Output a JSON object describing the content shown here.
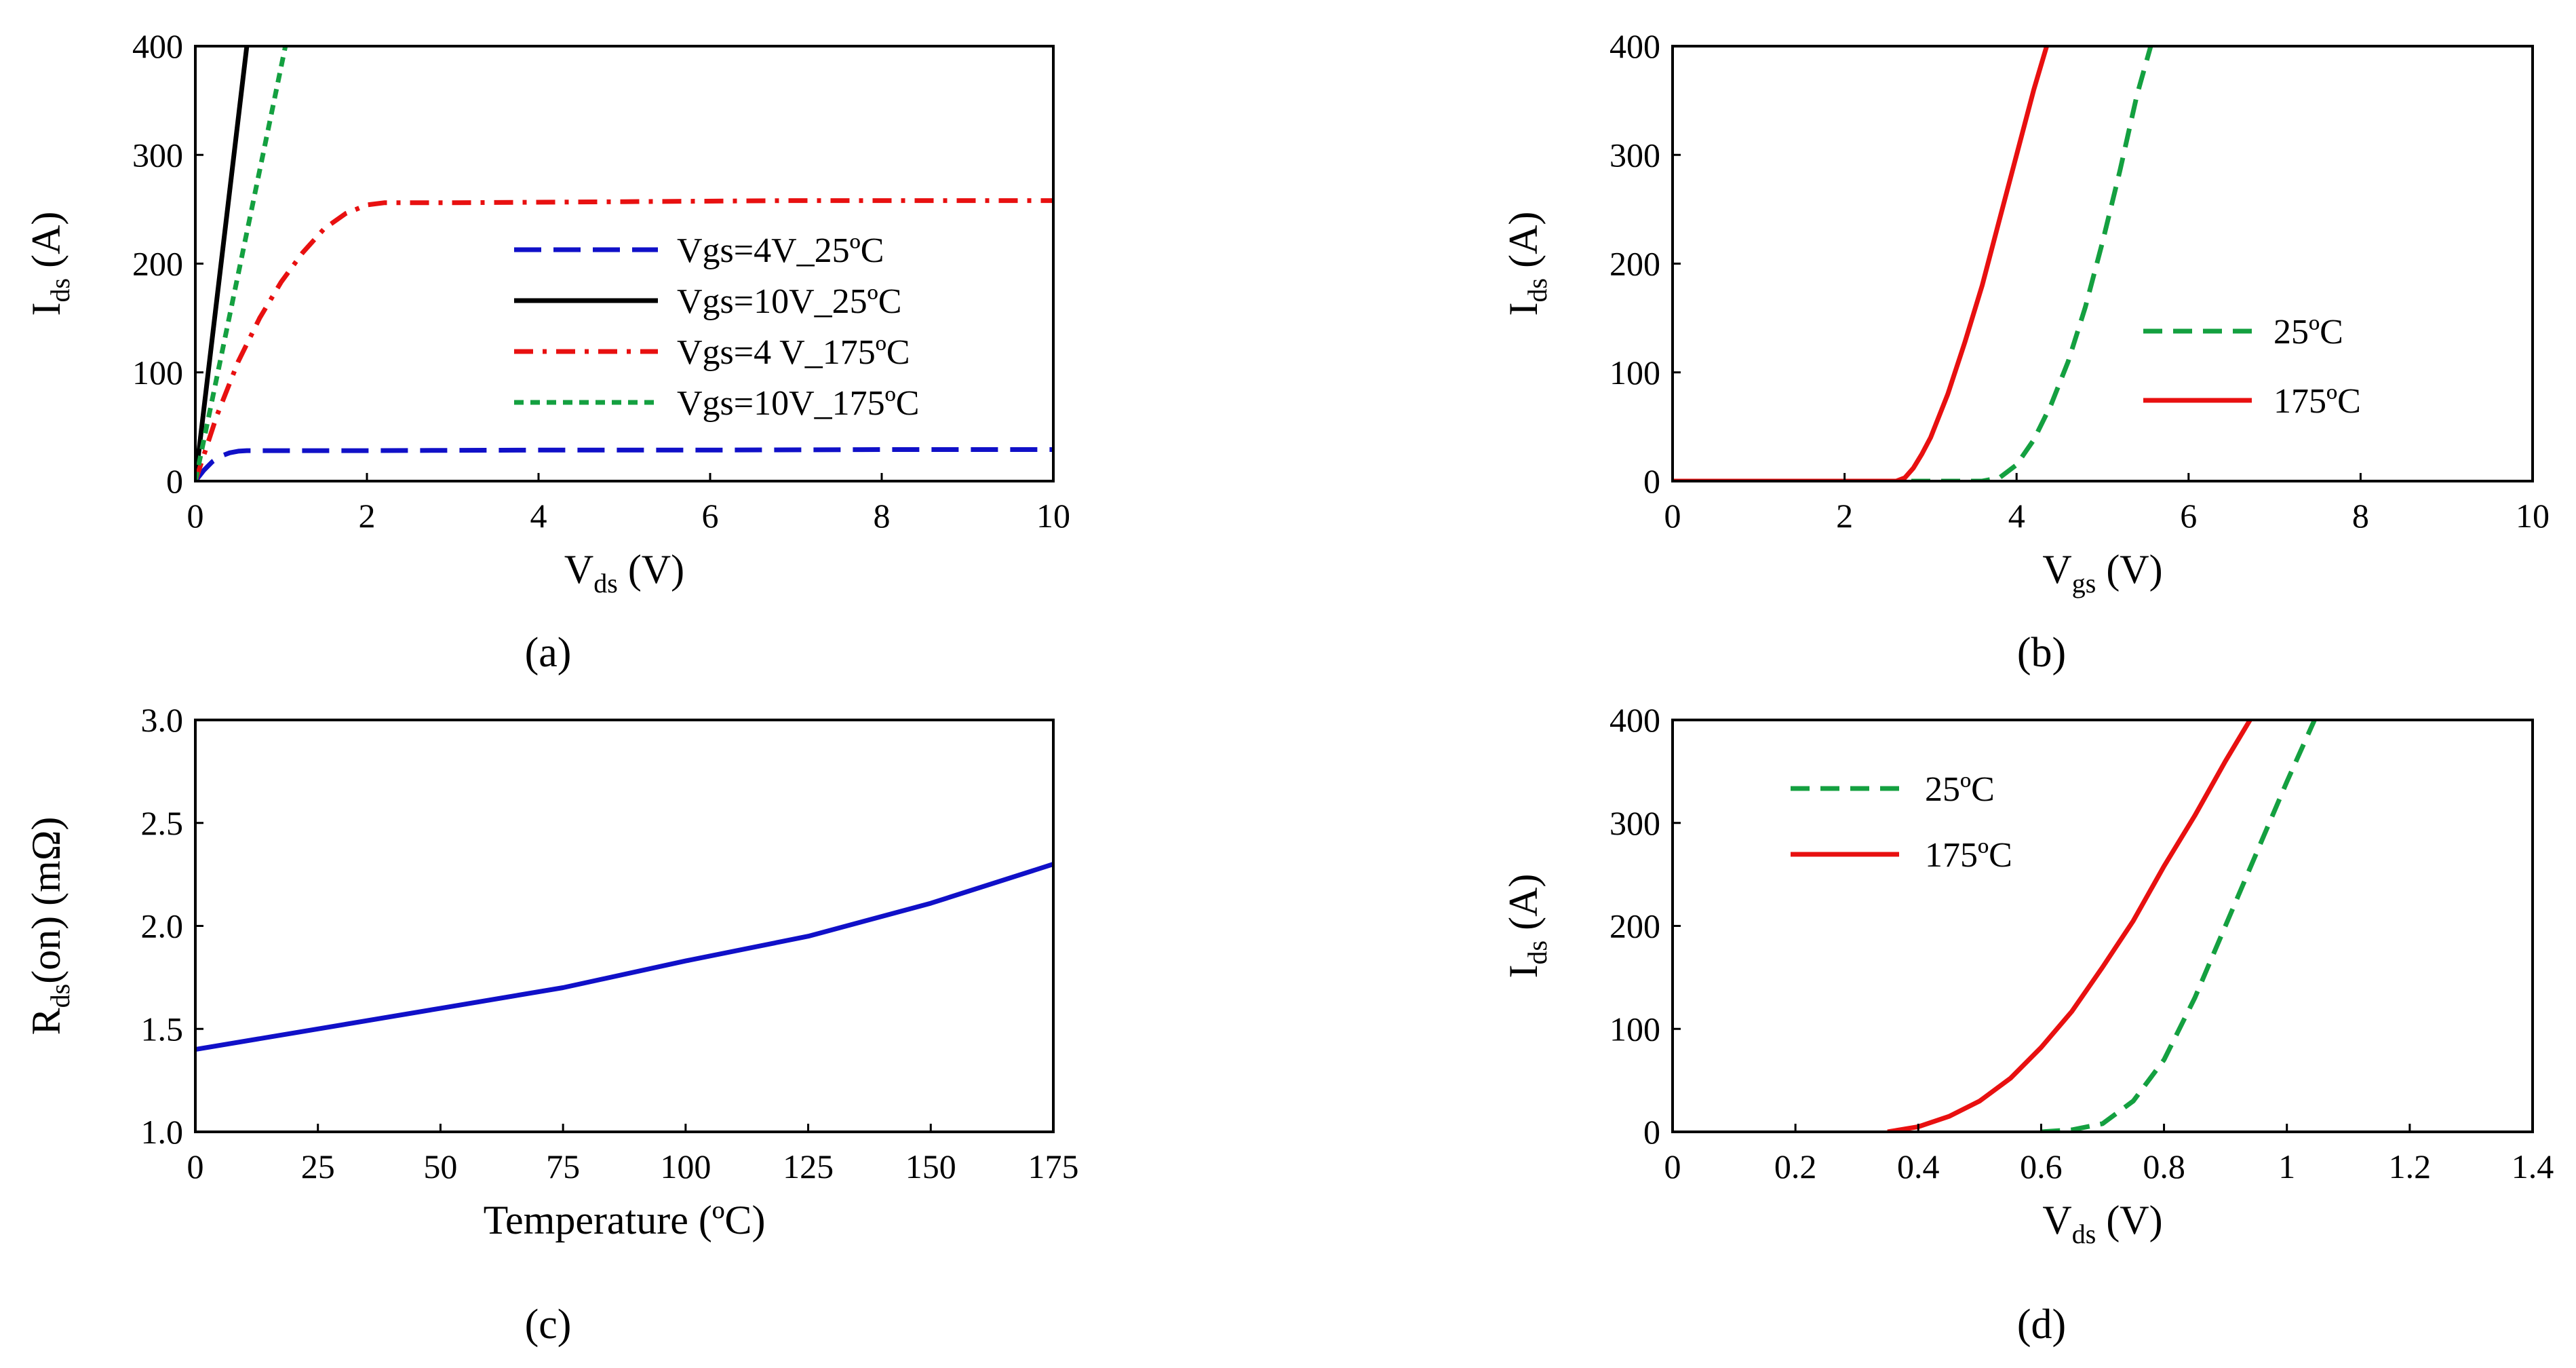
{
  "figure": {
    "captions": [
      "(a)",
      "(b)",
      "(c)",
      "(d)"
    ]
  },
  "chart_data": [
    {
      "id": "a",
      "type": "line",
      "caption": "(a)",
      "xlabel": {
        "main": "V",
        "sub": "ds",
        "unit": " (V)"
      },
      "ylabel": {
        "main": "I",
        "sub": "ds",
        "unit": " (A)"
      },
      "xlim": [
        0,
        10
      ],
      "ylim": [
        0,
        400
      ],
      "xticks": [
        0,
        2,
        4,
        6,
        8,
        10
      ],
      "yticks": [
        0,
        100,
        200,
        300,
        400
      ],
      "xtick_labels": [
        "0",
        "2",
        "4",
        "6",
        "8",
        "10"
      ],
      "ytick_labels": [
        "0",
        "100",
        "200",
        "300",
        "400"
      ],
      "legend_position": "center-right",
      "series": [
        {
          "name": "Vgs=4V_25ºC",
          "color": "#1010c8",
          "dash": "long-dash",
          "x": [
            0,
            0.1,
            0.2,
            0.3,
            0.4,
            0.5,
            0.6,
            1,
            2,
            4,
            6,
            8,
            10
          ],
          "y": [
            0,
            10,
            18,
            23,
            26,
            27.5,
            28,
            28,
            28,
            28.5,
            28.5,
            29,
            29
          ]
        },
        {
          "name": "Vgs=10V_25ºC",
          "color": "#000000",
          "dash": "solid",
          "x": [
            0,
            0.6
          ],
          "y": [
            0,
            400
          ]
        },
        {
          "name": "Vgs=4 V_175ºC",
          "color": "#e81010",
          "dash": "dash-dot",
          "x": [
            0,
            0.25,
            0.5,
            0.75,
            1,
            1.25,
            1.5,
            1.75,
            2,
            2.2,
            3,
            5,
            7,
            10
          ],
          "y": [
            0,
            60,
            110,
            150,
            183,
            210,
            232,
            246,
            254,
            256,
            256,
            257,
            258,
            258
          ]
        },
        {
          "name": "Vgs=10V_175ºC",
          "color": "#14a040",
          "dash": "short-dash",
          "x": [
            0,
            1.05
          ],
          "y": [
            0,
            400
          ]
        }
      ]
    },
    {
      "id": "b",
      "type": "line",
      "caption": "(b)",
      "xlabel": {
        "main": "V",
        "sub": "gs",
        "unit": " (V)"
      },
      "ylabel": {
        "main": "I",
        "sub": "ds",
        "unit": " (A)"
      },
      "xlim": [
        0,
        10
      ],
      "ylim": [
        0,
        400
      ],
      "xticks": [
        0,
        2,
        4,
        6,
        8,
        10
      ],
      "yticks": [
        0,
        100,
        200,
        300,
        400
      ],
      "xtick_labels": [
        "0",
        "2",
        "4",
        "6",
        "8",
        "10"
      ],
      "ytick_labels": [
        "0",
        "100",
        "200",
        "300",
        "400"
      ],
      "legend_position": "center-right",
      "series": [
        {
          "name": "25ºC",
          "color": "#14a040",
          "dash": "dash",
          "x": [
            0,
            3.2,
            3.6,
            3.8,
            4.0,
            4.2,
            4.4,
            4.6,
            4.8,
            5.0,
            5.2,
            5.4,
            5.56
          ],
          "y": [
            0,
            0,
            0,
            3,
            15,
            38,
            70,
            110,
            160,
            220,
            285,
            355,
            400
          ]
        },
        {
          "name": "175ºC",
          "color": "#e81010",
          "dash": "solid",
          "x": [
            0,
            2.6,
            2.7,
            2.8,
            2.9,
            3.0,
            3.2,
            3.4,
            3.6,
            3.8,
            4.0,
            4.2,
            4.35
          ],
          "y": [
            0,
            0,
            3,
            12,
            25,
            40,
            80,
            128,
            180,
            240,
            300,
            360,
            400
          ]
        }
      ]
    },
    {
      "id": "c",
      "type": "line",
      "caption": "(c)",
      "xlabel": {
        "main": "Temperature (ºC)"
      },
      "ylabel": {
        "main": "R",
        "sub": "ds",
        "unit": "(on) (mΩ)"
      },
      "xlim": [
        0,
        175
      ],
      "ylim": [
        1.0,
        3.0
      ],
      "xticks": [
        0,
        25,
        50,
        75,
        100,
        125,
        150,
        175
      ],
      "yticks": [
        1.0,
        1.5,
        2.0,
        2.5,
        3.0
      ],
      "xtick_labels": [
        "0",
        "25",
        "50",
        "75",
        "100",
        "125",
        "150",
        "175"
      ],
      "ytick_labels": [
        "1.0",
        "1.5",
        "2.0",
        "2.5",
        "3.0"
      ],
      "series": [
        {
          "name": "Rds(on)",
          "color": "#1010c8",
          "dash": "solid",
          "x": [
            0,
            25,
            50,
            75,
            100,
            125,
            150,
            175
          ],
          "y": [
            1.4,
            1.5,
            1.6,
            1.7,
            1.83,
            1.95,
            2.11,
            2.3
          ]
        }
      ]
    },
    {
      "id": "d",
      "type": "line",
      "caption": "(d)",
      "xlabel": {
        "main": "V",
        "sub": "ds",
        "unit": " (V)"
      },
      "ylabel": {
        "main": "I",
        "sub": "ds",
        "unit": " (A)"
      },
      "xlim": [
        0,
        1.4
      ],
      "ylim": [
        0,
        400
      ],
      "xticks": [
        0,
        0.2,
        0.4,
        0.6,
        0.8,
        1.0,
        1.2,
        1.4
      ],
      "yticks": [
        0,
        100,
        200,
        300,
        400
      ],
      "xtick_labels": [
        "0",
        "0.2",
        "0.4",
        "0.6",
        "0.8",
        "1",
        "1.2",
        "1.4"
      ],
      "ytick_labels": [
        "0",
        "100",
        "200",
        "300",
        "400"
      ],
      "legend_position": "top-left",
      "series": [
        {
          "name": "25ºC",
          "color": "#14a040",
          "dash": "dash",
          "x": [
            0.6,
            0.65,
            0.7,
            0.75,
            0.8,
            0.85,
            0.9,
            0.95,
            1.0,
            1.045
          ],
          "y": [
            0,
            2,
            8,
            30,
            70,
            130,
            200,
            270,
            340,
            400
          ]
        },
        {
          "name": "175ºC",
          "color": "#e81010",
          "dash": "solid",
          "x": [
            0.35,
            0.4,
            0.45,
            0.5,
            0.55,
            0.6,
            0.65,
            0.7,
            0.75,
            0.8,
            0.85,
            0.9,
            0.94
          ],
          "y": [
            0,
            5,
            15,
            30,
            52,
            82,
            117,
            160,
            205,
            258,
            307,
            360,
            400
          ]
        }
      ]
    }
  ]
}
